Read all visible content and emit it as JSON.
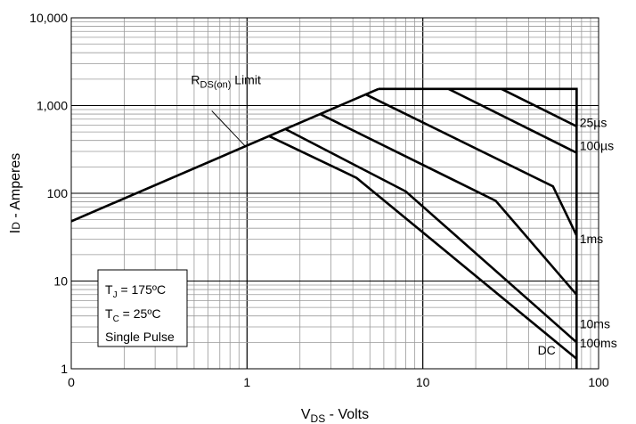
{
  "chart_data": {
    "type": "line",
    "title": "",
    "xlabel": {
      "main": "V",
      "sub": "DS",
      "rest": " - Volts"
    },
    "ylabel": {
      "main": "I",
      "sub": "D",
      "rest": " - Amperes"
    },
    "xscale": "log",
    "yscale": "log",
    "xlim": [
      0.1,
      100
    ],
    "ylim": [
      1,
      10000
    ],
    "x_ticks": [
      {
        "value": 0.1,
        "label": "0"
      },
      {
        "value": 1,
        "label": "1"
      },
      {
        "value": 10,
        "label": "10"
      },
      {
        "value": 100,
        "label": "100"
      }
    ],
    "y_ticks": [
      {
        "value": 1,
        "label": "1"
      },
      {
        "value": 10,
        "label": "10"
      },
      {
        "value": 100,
        "label": "100"
      },
      {
        "value": 1000,
        "label": "1,000"
      },
      {
        "value": 10000,
        "label": "10,000"
      }
    ],
    "grid": true,
    "series": [
      {
        "name": "RDS(on) Limit",
        "x": [
          0.1,
          5.6
        ],
        "y": [
          48,
          1550
        ]
      },
      {
        "name": "25µs",
        "x": [
          5.6,
          75,
          75
        ],
        "y": [
          1550,
          1550,
          580
        ]
      },
      {
        "name": "25µs",
        "x": [
          28,
          75
        ],
        "y": [
          1550,
          580
        ]
      },
      {
        "name": "100µs",
        "x": [
          14,
          75
        ],
        "y": [
          1550,
          290
        ]
      },
      {
        "name": "1ms",
        "x": [
          4.7,
          55,
          75
        ],
        "y": [
          1350,
          120,
          33
        ]
      },
      {
        "name": "10ms",
        "x": [
          2.6,
          26,
          75
        ],
        "y": [
          800,
          82,
          7
        ]
      },
      {
        "name": "100ms",
        "x": [
          1.65,
          8,
          75
        ],
        "y": [
          540,
          105,
          2
        ]
      },
      {
        "name": "DC",
        "x": [
          1.33,
          4.2,
          75
        ],
        "y": [
          450,
          150,
          1.3
        ]
      },
      {
        "name": "",
        "x": [
          75,
          75
        ],
        "y": [
          1550,
          1
        ]
      }
    ],
    "labels": [
      {
        "id": "rds_main",
        "text": "R",
        "x": 0.48,
        "y": 1750
      },
      {
        "id": "rds_sub",
        "text": "DS(on)"
      },
      {
        "id": "rds_rest",
        "text": " Limit"
      },
      {
        "id": "l25",
        "text": "25µs",
        "x": 78,
        "y": 570
      },
      {
        "id": "l100",
        "text": "100µs",
        "x": 78,
        "y": 310
      },
      {
        "id": "l1ms",
        "text": "1ms",
        "x": 78,
        "y": 27
      },
      {
        "id": "l10ms",
        "text": "10ms",
        "x": 78,
        "y": 2.9
      },
      {
        "id": "l100ms",
        "text": "100ms",
        "x": 78,
        "y": 1.75
      },
      {
        "id": "ldc",
        "text": "DC",
        "x": 45,
        "y": 1.45
      }
    ],
    "leader": {
      "from": [
        0.63,
        870
      ],
      "to": [
        0.97,
        350
      ]
    },
    "notes_box": {
      "lines": [
        {
          "main": "T",
          "sub": "J",
          "rest": " = 175ºC"
        },
        {
          "main": "T",
          "sub": "C",
          "rest": " = 25ºC"
        },
        {
          "main": "Single Pulse",
          "sub": "",
          "rest": ""
        }
      ]
    }
  }
}
